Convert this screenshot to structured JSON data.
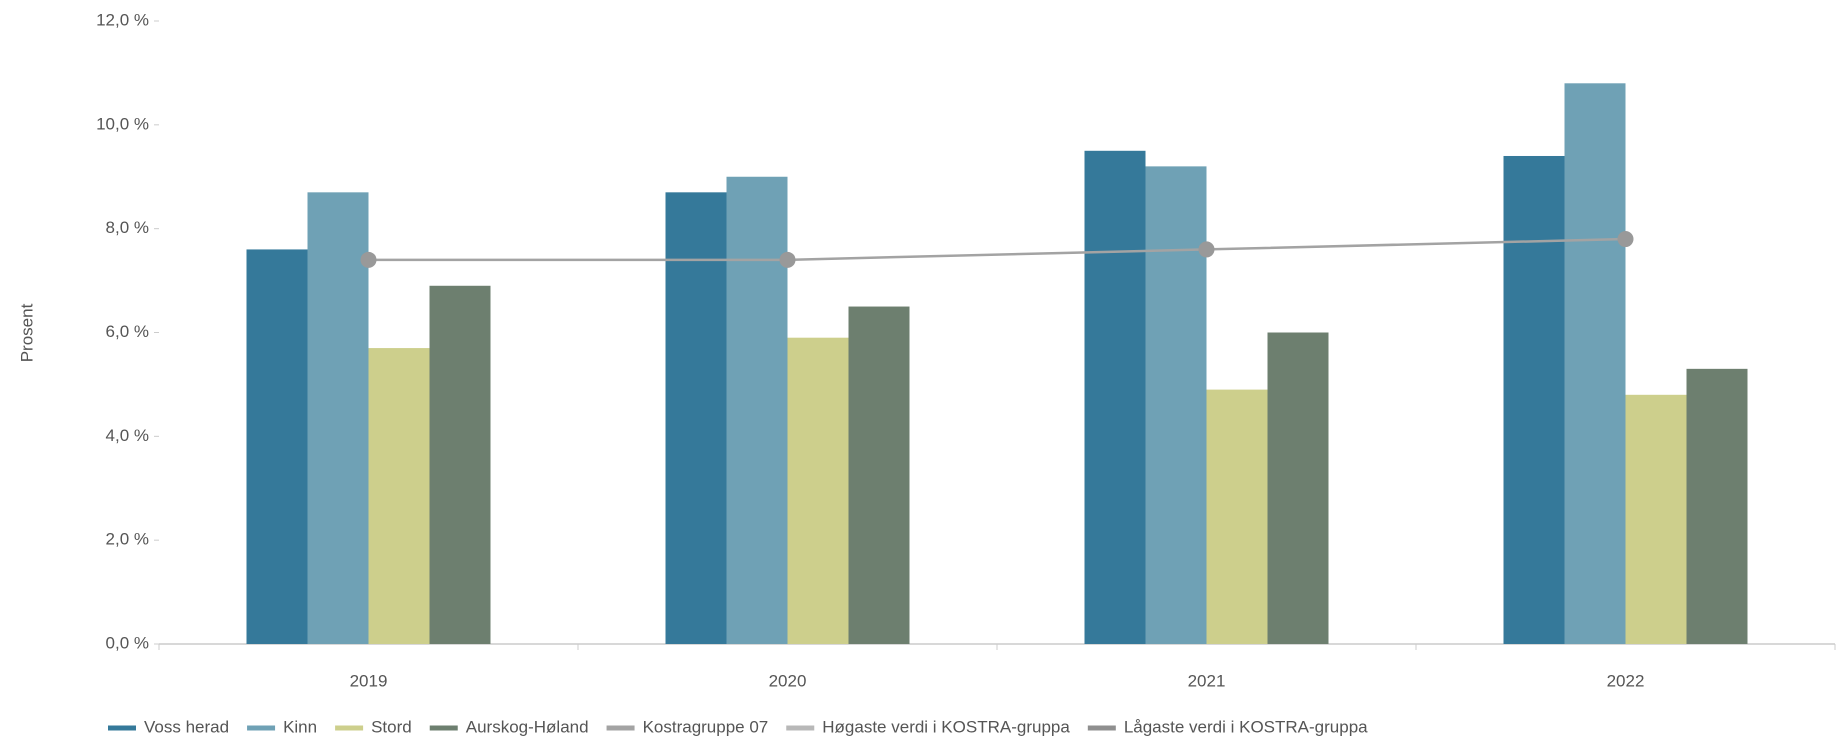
{
  "chart_data": {
    "type": "bar",
    "y_label": "Prosent",
    "categories": [
      "2019",
      "2020",
      "2021",
      "2022"
    ],
    "ylim": [
      0,
      12
    ],
    "yticks": [
      {
        "value": 0,
        "label": "0,0 %"
      },
      {
        "value": 2,
        "label": "2,0 %"
      },
      {
        "value": 4,
        "label": "4,0 %"
      },
      {
        "value": 6,
        "label": "6,0 %"
      },
      {
        "value": 8,
        "label": "8,0 %"
      },
      {
        "value": 10,
        "label": "10,0 %"
      },
      {
        "value": 12,
        "label": "12,0 %"
      }
    ],
    "grid": false,
    "legend": "bottom",
    "series": [
      {
        "name": "Voss herad",
        "type": "bar",
        "color": "#35799a",
        "values": [
          7.6,
          8.7,
          9.5,
          9.4
        ]
      },
      {
        "name": "Kinn",
        "type": "bar",
        "color": "#6fa1b5",
        "values": [
          8.7,
          9.0,
          9.2,
          10.8
        ]
      },
      {
        "name": "Stord",
        "type": "bar",
        "color": "#cdcf8c",
        "values": [
          5.7,
          5.9,
          4.9,
          4.8
        ]
      },
      {
        "name": "Aurskog-Høland",
        "type": "bar",
        "color": "#6d7f6f",
        "values": [
          6.9,
          6.5,
          6.0,
          5.3
        ]
      },
      {
        "name": "Kostragruppe 07",
        "type": "line",
        "color": "#a3a3a3",
        "values": [
          7.4,
          7.4,
          7.6,
          7.8
        ]
      },
      {
        "name": "Høgaste verdi i KOSTRA-gruppa",
        "type": "line",
        "color": "#b8b8b8",
        "values": [
          null,
          null,
          null,
          null
        ]
      },
      {
        "name": "Lågaste verdi i KOSTRA-gruppa",
        "type": "line",
        "color": "#8f8f8f",
        "values": [
          null,
          null,
          null,
          null
        ]
      }
    ]
  }
}
